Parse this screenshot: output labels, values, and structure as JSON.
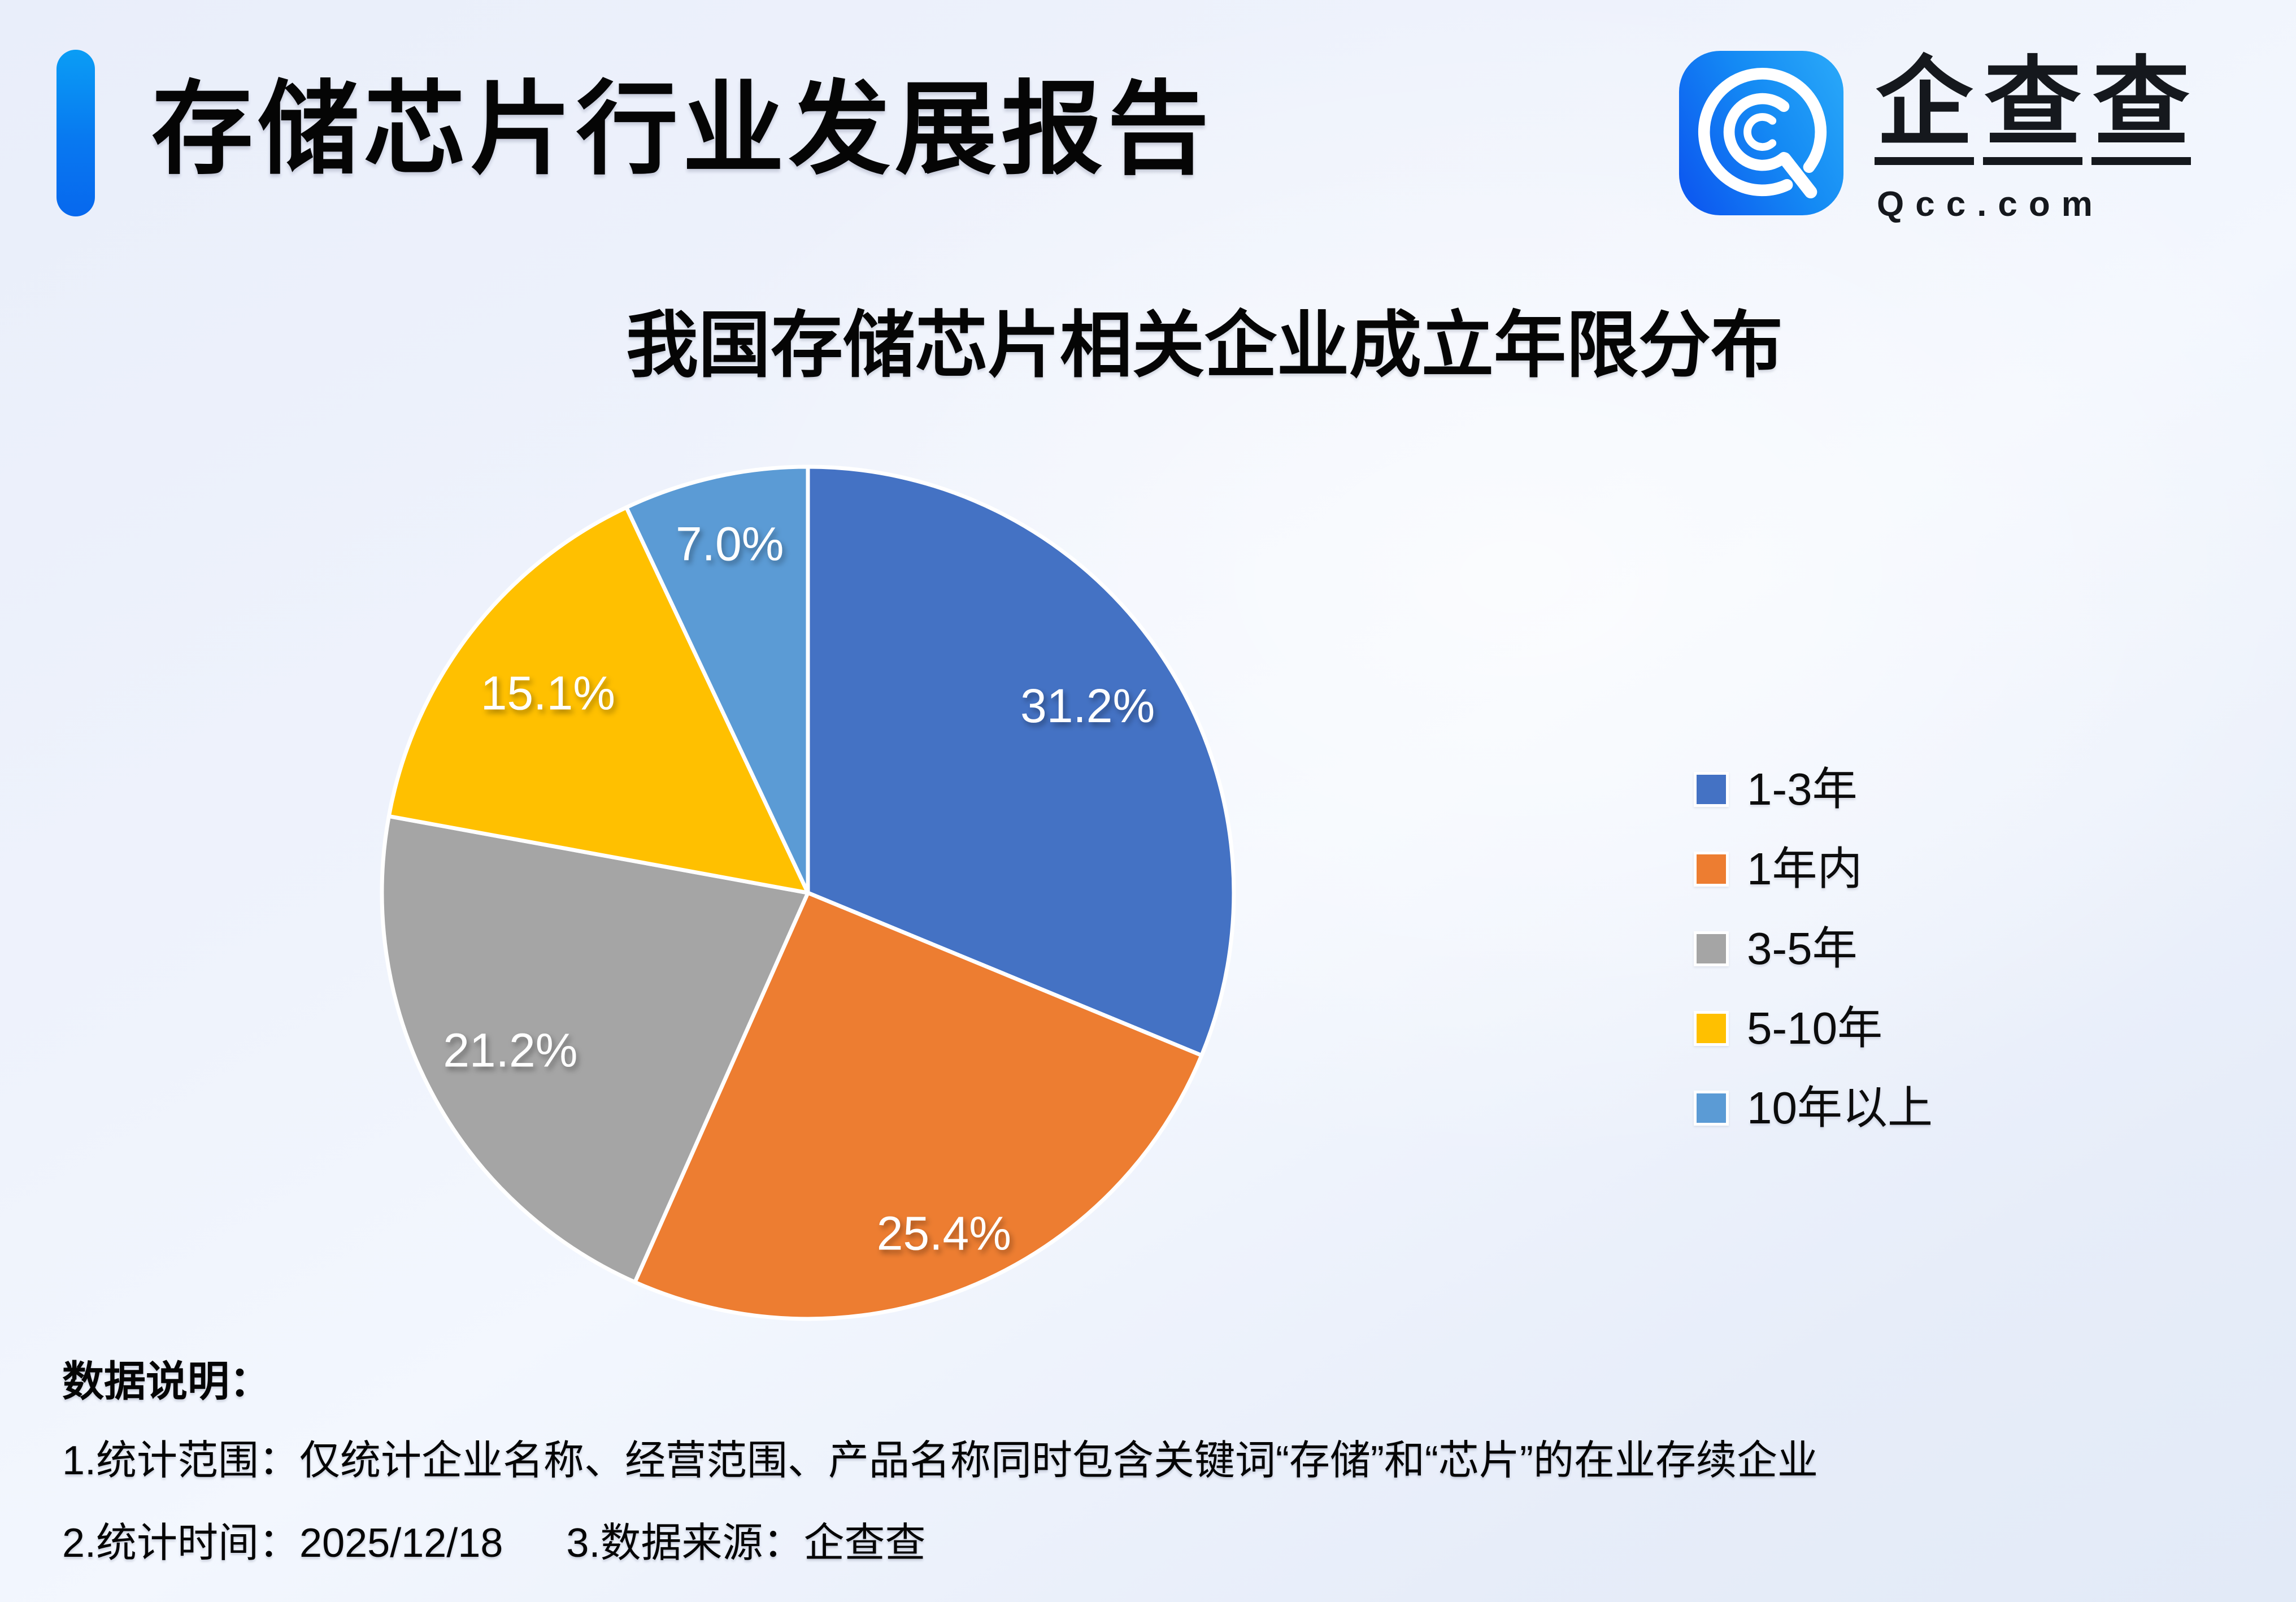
{
  "header": {
    "title": "存储芯片行业发展报告",
    "logo_text": "企查查",
    "logo_char1": "企",
    "logo_char2": "查",
    "logo_char3": "查",
    "logo_domain": "Qcc.com"
  },
  "chart": {
    "title": "我国存储芯片相关企业成立年限分布"
  },
  "chart_data": {
    "type": "pie",
    "title": "我国存储芯片相关企业成立年限分布",
    "unit": "%",
    "start_angle_deg": 0,
    "direction": "clockwise",
    "legend_position": "right",
    "slices": [
      {
        "label": "1-3年",
        "value": 31.2,
        "display": "31.2%",
        "color": "#4472C4"
      },
      {
        "label": "1年内",
        "value": 25.4,
        "display": "25.4%",
        "color": "#ED7D31"
      },
      {
        "label": "3-5年",
        "value": 21.2,
        "display": "21.2%",
        "color": "#A5A5A5"
      },
      {
        "label": "5-10年",
        "value": 15.1,
        "display": "15.1%",
        "color": "#FFC000"
      },
      {
        "label": "10年以上",
        "value": 7.0,
        "display": "7.0%",
        "color": "#5B9BD5"
      }
    ]
  },
  "footer": {
    "heading": "数据说明：",
    "notes": [
      "1.统计范围：仅统计企业名称、经营范围、产品名称同时包含关键词“存储”和“芯片”的在业存续企业",
      "2.统计时间：2025/12/18",
      "3.数据来源：企查查"
    ]
  },
  "colors": {
    "accent_bar_top": "#0A9DF5",
    "accent_bar_bottom": "#0768EE",
    "logo_blue_left": "#0D5BF0",
    "logo_blue_right": "#27A5F8",
    "pie_stroke": "#FFFFFF",
    "text": "#050505"
  }
}
